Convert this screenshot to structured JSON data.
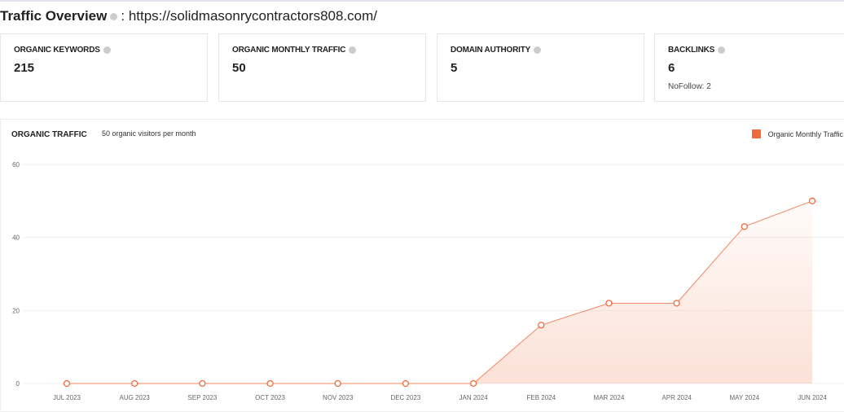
{
  "header": {
    "title": "Traffic Overview",
    "separator": ":",
    "url": "https://solidmasonrycontractors808.com/"
  },
  "cards": [
    {
      "label": "ORGANIC KEYWORDS",
      "value": "215"
    },
    {
      "label": "ORGANIC MONTHLY TRAFFIC",
      "value": "50"
    },
    {
      "label": "DOMAIN AUTHORITY",
      "value": "5"
    },
    {
      "label": "BACKLINKS",
      "value": "6",
      "sub": "NoFollow: 2"
    }
  ],
  "chart_section": {
    "title": "ORGANIC TRAFFIC",
    "subtitle": "50 organic visitors per month"
  },
  "chart_data": {
    "type": "area",
    "categories": [
      "JUL 2023",
      "AUG 2023",
      "SEP 2023",
      "OCT 2023",
      "NOV 2023",
      "DEC 2023",
      "JAN 2024",
      "FEB 2024",
      "MAR 2024",
      "APR 2024",
      "MAY 2024",
      "JUN 2024"
    ],
    "series": [
      {
        "name": "Organic Monthly Traffic",
        "values": [
          0,
          0,
          0,
          0,
          0,
          0,
          0,
          16,
          22,
          22,
          43,
          50
        ],
        "color": "#f06a3a"
      }
    ],
    "ylim": [
      0,
      60
    ],
    "yticks": [
      "0",
      "20",
      "40",
      "60"
    ],
    "grid": true,
    "legend": "top-right"
  }
}
